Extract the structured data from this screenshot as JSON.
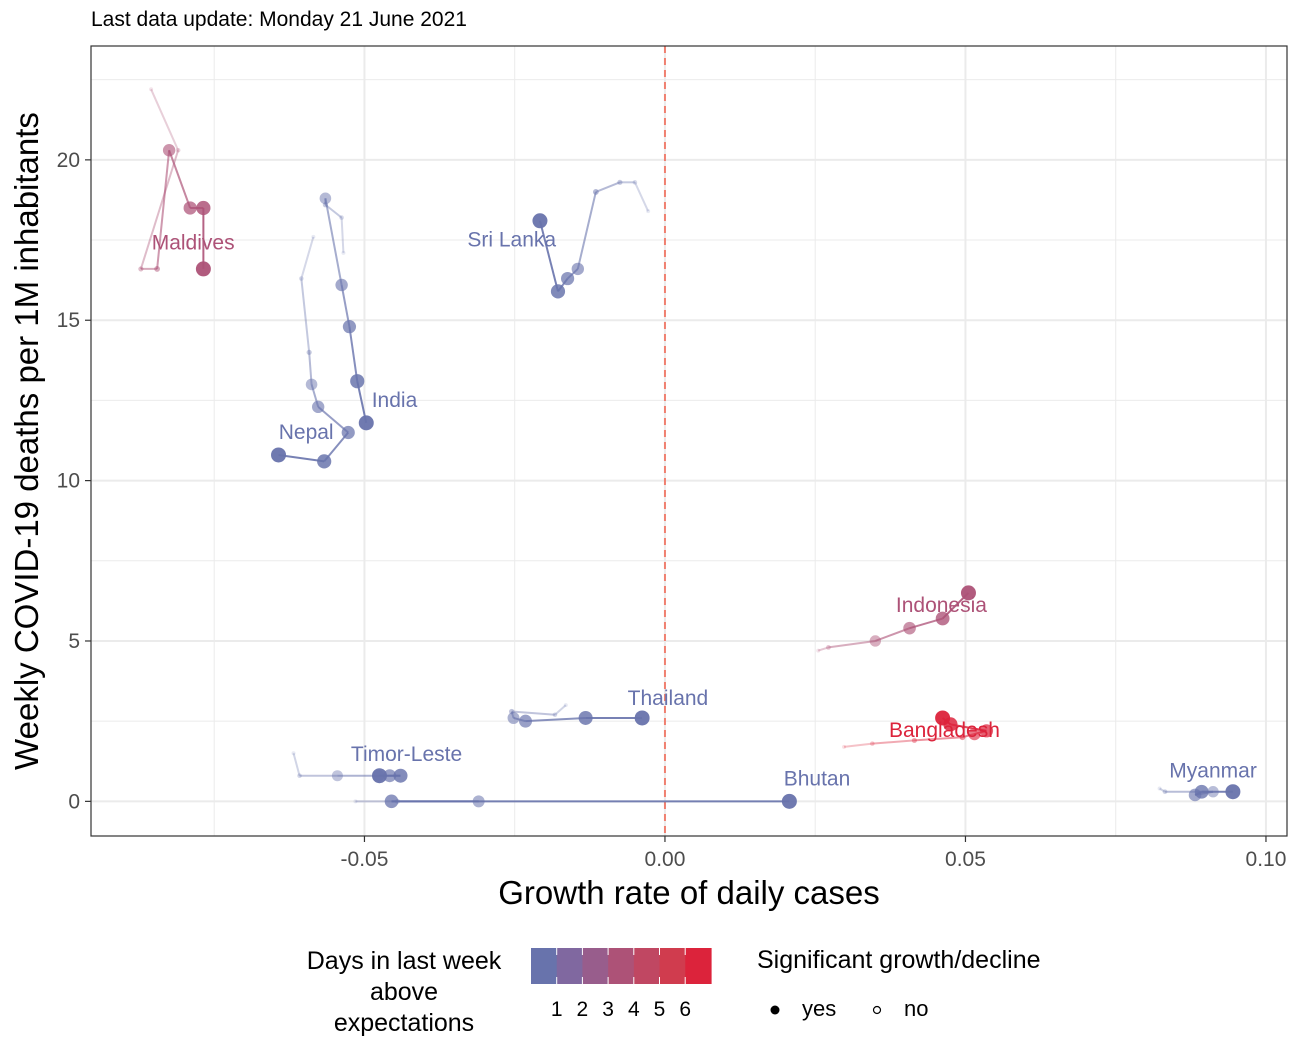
{
  "subtitle": "Last data update: Monday 21 June 2021",
  "colors": {
    "scale": [
      "#6873ac",
      "#8068a0",
      "#985d8c",
      "#ad5277",
      "#c04762",
      "#d03c4e",
      "#dc233b"
    ],
    "ref_line": "#f08070",
    "grid": "#ebebeb",
    "panel_border": "#333333"
  },
  "chart_data": {
    "type": "scatter",
    "xlabel": "Growth rate of daily cases",
    "ylabel": "Weekly COVID-19 deaths per 1M inhabitants",
    "xlim": [
      -0.0955,
      0.1035
    ],
    "ylim": [
      -1.08,
      23.55
    ],
    "x_ticks": [
      -0.05,
      0.0,
      0.05,
      0.1
    ],
    "x_tick_labels": [
      "-0.05",
      "0.00",
      "0.05",
      "0.10"
    ],
    "y_ticks": [
      0,
      5,
      10,
      15,
      20
    ],
    "y_tick_labels": [
      "0",
      "5",
      "10",
      "15",
      "20"
    ],
    "reference_line": {
      "axis": "x",
      "value": 0,
      "style": "dashed"
    },
    "grid": true,
    "legend_position": "bottom",
    "series": [
      {
        "name": "Maldives",
        "color_level": 3,
        "label_pos": [
          -0.0785,
          17.2
        ],
        "points": [
          [
            -0.0855,
            22.2,
            0
          ],
          [
            -0.081,
            20.3,
            0
          ],
          [
            -0.0872,
            16.6,
            0
          ],
          [
            -0.0845,
            16.6,
            0
          ],
          [
            -0.0825,
            20.3,
            1
          ],
          [
            -0.079,
            18.5,
            1
          ],
          [
            -0.0768,
            18.5,
            1
          ],
          [
            -0.0768,
            16.6,
            1
          ]
        ]
      },
      {
        "name": "Sri Lanka",
        "color_level": 0,
        "label_pos": [
          -0.0255,
          17.3
        ],
        "points": [
          [
            -0.0028,
            18.4,
            0
          ],
          [
            -0.005,
            19.3,
            0
          ],
          [
            -0.0075,
            19.3,
            0
          ],
          [
            -0.0115,
            19.0,
            0
          ],
          [
            -0.0145,
            16.6,
            1
          ],
          [
            -0.0162,
            16.3,
            1
          ],
          [
            -0.0178,
            15.9,
            1
          ],
          [
            -0.0208,
            18.1,
            1
          ]
        ]
      },
      {
        "name": "India",
        "color_level": 0,
        "label_pos": [
          -0.045,
          12.3
        ],
        "points": [
          [
            -0.0535,
            17.1,
            0
          ],
          [
            -0.0538,
            18.2,
            0
          ],
          [
            -0.0565,
            18.6,
            0
          ],
          [
            -0.0565,
            18.8,
            1
          ],
          [
            -0.0538,
            16.1,
            1
          ],
          [
            -0.0525,
            14.8,
            1
          ],
          [
            -0.0512,
            13.1,
            1
          ],
          [
            -0.0497,
            11.8,
            1
          ]
        ]
      },
      {
        "name": "Nepal",
        "color_level": 0,
        "label_pos": [
          -0.0597,
          11.3
        ],
        "points": [
          [
            -0.0585,
            17.6,
            0
          ],
          [
            -0.0605,
            16.3,
            0
          ],
          [
            -0.0592,
            14.0,
            0
          ],
          [
            -0.0588,
            13.0,
            1
          ],
          [
            -0.0577,
            12.3,
            1
          ],
          [
            -0.0527,
            11.5,
            1
          ],
          [
            -0.0567,
            10.6,
            1
          ],
          [
            -0.0643,
            10.8,
            1
          ]
        ]
      },
      {
        "name": "Indonesia",
        "color_level": 3,
        "label_pos": [
          0.046,
          5.9
        ],
        "points": [
          [
            0.0255,
            4.7,
            0
          ],
          [
            0.0272,
            4.8,
            0
          ],
          [
            0.035,
            5.0,
            1
          ],
          [
            0.0407,
            5.4,
            1
          ],
          [
            0.0462,
            5.7,
            1
          ],
          [
            0.0505,
            6.5,
            1
          ]
        ]
      },
      {
        "name": "Bangladesh",
        "color_level": 6,
        "label_pos": [
          0.0465,
          2.0
        ],
        "points": [
          [
            0.0298,
            1.7,
            0
          ],
          [
            0.0345,
            1.8,
            0
          ],
          [
            0.0415,
            1.9,
            0
          ],
          [
            0.0495,
            2.0,
            0
          ],
          [
            0.0515,
            2.1,
            1
          ],
          [
            0.0535,
            2.2,
            1
          ],
          [
            0.0475,
            2.4,
            1
          ],
          [
            0.0462,
            2.6,
            1
          ]
        ]
      },
      {
        "name": "Thailand",
        "color_level": 0,
        "label_pos": [
          0.0005,
          3.0
        ],
        "points": [
          [
            -0.0165,
            3.0,
            0
          ],
          [
            -0.0183,
            2.7,
            0
          ],
          [
            -0.0255,
            2.8,
            0
          ],
          [
            -0.0252,
            2.6,
            1
          ],
          [
            -0.0232,
            2.5,
            1
          ],
          [
            -0.0132,
            2.6,
            1
          ],
          [
            -0.0038,
            2.6,
            1
          ]
        ]
      },
      {
        "name": "Timor-Leste",
        "color_level": 0,
        "label_pos": [
          -0.043,
          1.26
        ],
        "points": [
          [
            -0.0618,
            1.5,
            0
          ],
          [
            -0.0608,
            0.8,
            0
          ],
          [
            -0.0545,
            0.8,
            1
          ],
          [
            -0.0477,
            0.8,
            1
          ],
          [
            -0.0458,
            0.8,
            1
          ],
          [
            -0.044,
            0.8,
            1
          ],
          [
            -0.0475,
            0.8,
            1
          ]
        ]
      },
      {
        "name": "Bhutan",
        "color_level": 0,
        "label_pos": [
          0.0253,
          0.5
        ],
        "points": [
          [
            -0.0515,
            0.0,
            0
          ],
          [
            -0.0445,
            0.0,
            0
          ],
          [
            -0.031,
            0.0,
            1
          ],
          [
            -0.0455,
            0.0,
            1
          ],
          [
            0.0207,
            0.0,
            1
          ]
        ]
      },
      {
        "name": "Myanmar",
        "color_level": 0,
        "label_pos": [
          0.0912,
          0.75
        ],
        "points": [
          [
            0.0823,
            0.4,
            0
          ],
          [
            0.0832,
            0.3,
            0
          ],
          [
            0.0912,
            0.3,
            1
          ],
          [
            0.0882,
            0.2,
            1
          ],
          [
            0.0893,
            0.3,
            1
          ],
          [
            0.0945,
            0.3,
            1
          ]
        ]
      }
    ],
    "legend": {
      "color_title": [
        "Days in last week",
        "above",
        "expectations"
      ],
      "color_labels": [
        "1",
        "2",
        "3",
        "4",
        "5",
        "6"
      ],
      "size_title": "Significant growth/decline",
      "size_labels": [
        "yes",
        "no"
      ]
    }
  }
}
